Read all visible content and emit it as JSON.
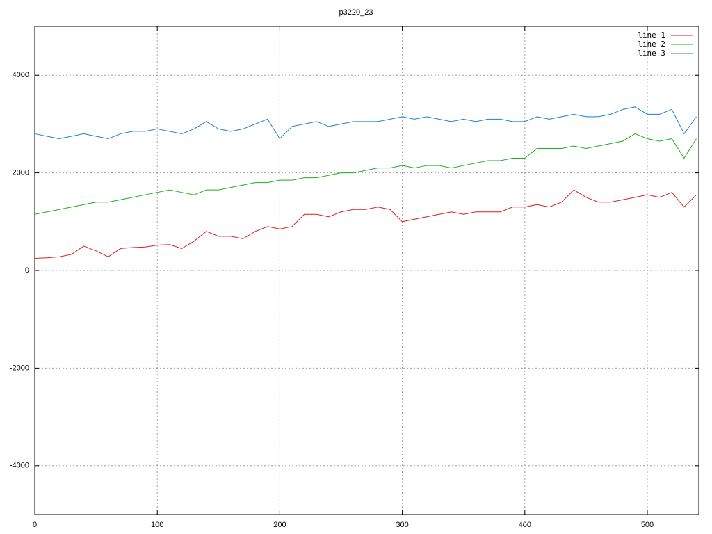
{
  "chart_data": {
    "type": "line",
    "title": "p3220_23",
    "x": [
      0,
      10,
      20,
      30,
      40,
      50,
      60,
      70,
      80,
      90,
      100,
      110,
      120,
      130,
      140,
      150,
      160,
      170,
      180,
      190,
      200,
      210,
      220,
      230,
      240,
      250,
      260,
      270,
      280,
      290,
      300,
      310,
      320,
      330,
      340,
      350,
      360,
      370,
      380,
      390,
      400,
      410,
      420,
      430,
      440,
      450,
      460,
      470,
      480,
      490,
      500,
      510,
      520,
      530,
      540
    ],
    "series": [
      {
        "name": "line 1",
        "color": "#e41a1c",
        "values": [
          250,
          260,
          280,
          330,
          500,
          400,
          280,
          450,
          470,
          480,
          520,
          530,
          450,
          600,
          800,
          700,
          700,
          650,
          800,
          900,
          850,
          900,
          1150,
          1150,
          1100,
          1200,
          1250,
          1250,
          1300,
          1250,
          1000,
          1050,
          1100,
          1150,
          1200,
          1150,
          1200,
          1200,
          1200,
          1300,
          1300,
          1350,
          1300,
          1400,
          1650,
          1500,
          1400,
          1400,
          1450,
          1500,
          1550,
          1500,
          1600,
          1300,
          1550
        ]
      },
      {
        "name": "line 2",
        "color": "#1fae1f",
        "values": [
          1150,
          1200,
          1250,
          1300,
          1350,
          1400,
          1400,
          1450,
          1500,
          1550,
          1600,
          1650,
          1600,
          1550,
          1650,
          1650,
          1700,
          1750,
          1800,
          1800,
          1850,
          1850,
          1900,
          1900,
          1950,
          2000,
          2000,
          2050,
          2100,
          2100,
          2150,
          2100,
          2150,
          2150,
          2100,
          2150,
          2200,
          2250,
          2250,
          2300,
          2300,
          2500,
          2500,
          2500,
          2550,
          2500,
          2550,
          2600,
          2650,
          2800,
          2700,
          2650,
          2700,
          2300,
          2700
        ]
      },
      {
        "name": "line 3",
        "color": "#1a7fd6",
        "values": [
          2800,
          2750,
          2700,
          2750,
          2800,
          2750,
          2700,
          2800,
          2850,
          2850,
          2900,
          2850,
          2800,
          2900,
          3050,
          2900,
          2850,
          2900,
          3000,
          3100,
          2700,
          2950,
          3000,
          3050,
          2950,
          3000,
          3050,
          3050,
          3050,
          3100,
          3150,
          3100,
          3150,
          3100,
          3050,
          3100,
          3050,
          3100,
          3100,
          3050,
          3050,
          3150,
          3100,
          3150,
          3200,
          3150,
          3150,
          3200,
          3300,
          3350,
          3200,
          3200,
          3300,
          2800,
          3150
        ]
      }
    ],
    "xlim": [
      0,
      542
    ],
    "ylim": [
      -5000,
      5000
    ],
    "xticks": [
      0,
      100,
      200,
      300,
      400,
      500
    ],
    "yticks": [
      -4000,
      -2000,
      0,
      2000,
      4000
    ],
    "grid": true,
    "legend": "top-right"
  }
}
